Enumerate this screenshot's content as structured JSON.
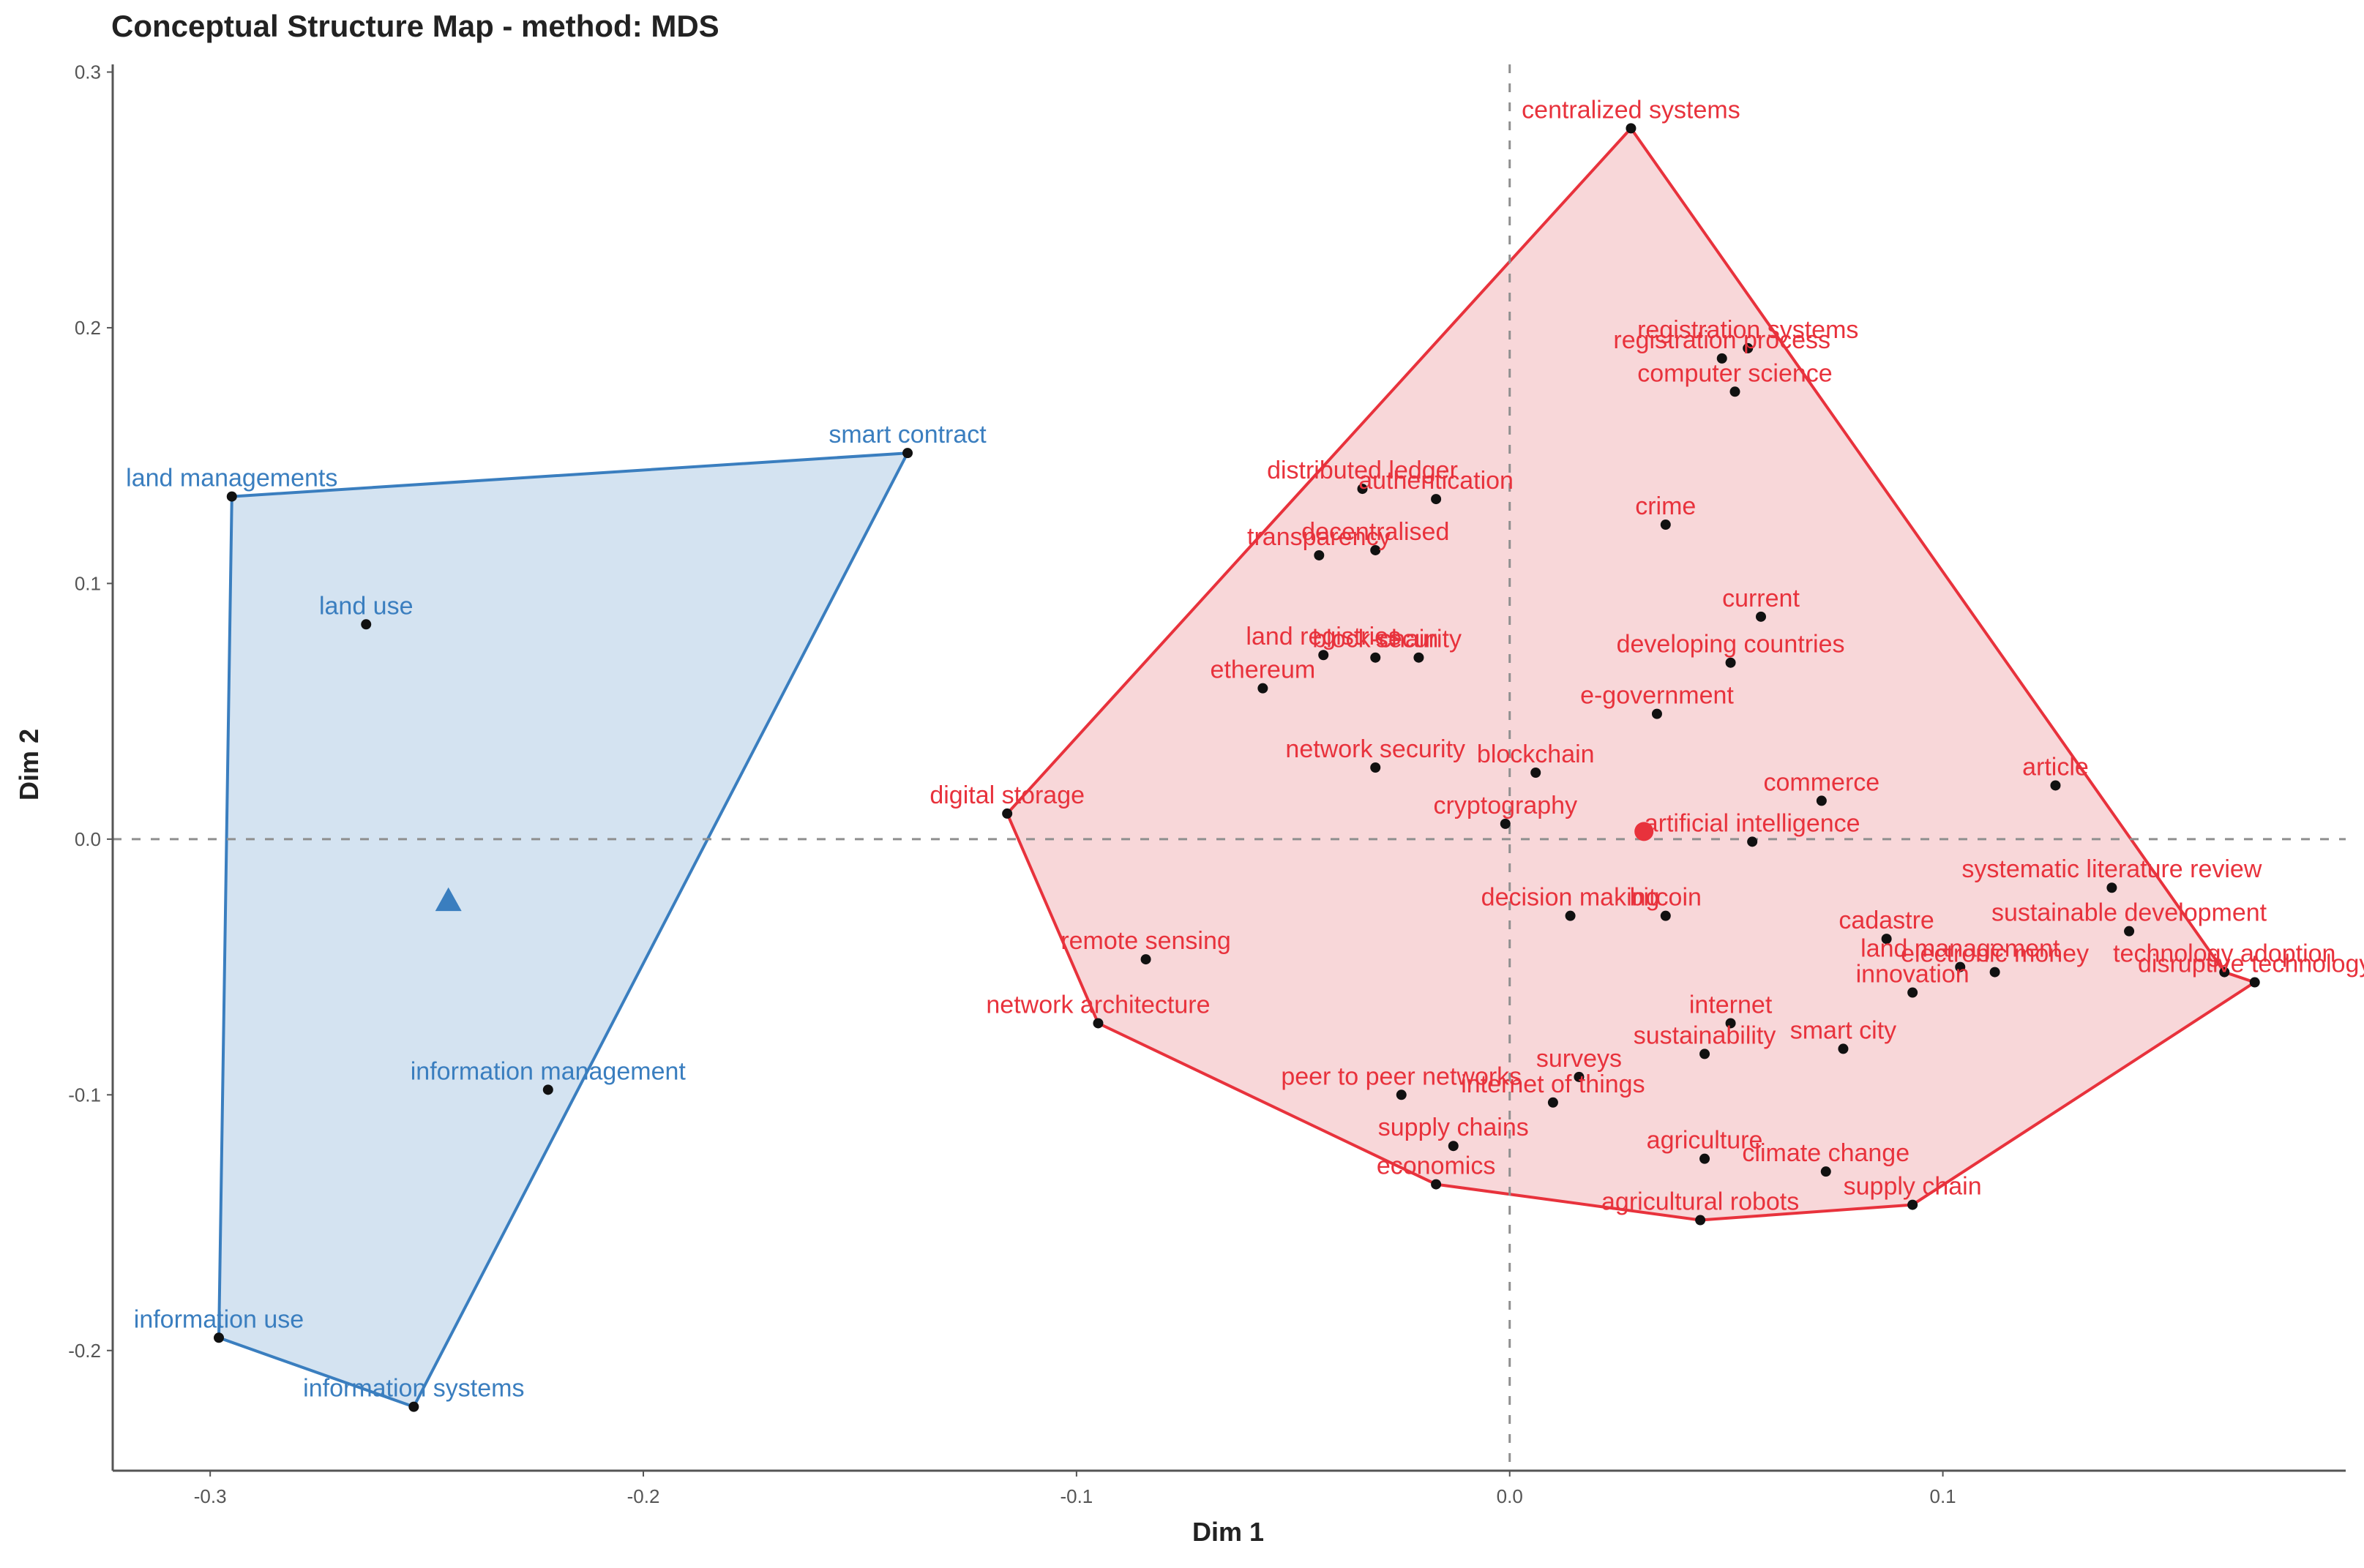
{
  "chart_data": {
    "type": "scatter",
    "title": "Conceptual Structure Map - method: MDS",
    "xlabel": "Dim 1",
    "ylabel": "Dim 2",
    "xlim": [
      -0.3225,
      0.193
    ],
    "ylim": [
      -0.247,
      0.303
    ],
    "xticks": [
      -0.3,
      -0.2,
      -0.1,
      0.0,
      0.1
    ],
    "xtick_labels": [
      "-0.3",
      "-0.2",
      "-0.1",
      "0.0",
      "0.1"
    ],
    "yticks": [
      -0.2,
      -0.1,
      0.0,
      0.1,
      0.2,
      0.3
    ],
    "ytick_labels": [
      "-0.2",
      "-0.1",
      "0.0",
      "0.1",
      "0.2",
      "0.3"
    ],
    "grid": false,
    "reference_lines": {
      "x": 0,
      "y": 0,
      "style": "dashed"
    },
    "clusters": [
      {
        "name": "cluster-1",
        "color": "#3a7ebf",
        "fill": "#c6d9ec",
        "centroid": [
          -0.245,
          -0.024
        ],
        "centroid_marker": "triangle",
        "hull": [
          "land managements",
          "smart contract",
          "information systems",
          "information use"
        ],
        "points": [
          {
            "label": "land managements",
            "x": -0.295,
            "y": 0.134
          },
          {
            "label": "smart contract",
            "x": -0.139,
            "y": 0.151
          },
          {
            "label": "land use",
            "x": -0.264,
            "y": 0.084
          },
          {
            "label": "information management",
            "x": -0.222,
            "y": -0.098
          },
          {
            "label": "information use",
            "x": -0.298,
            "y": -0.195
          },
          {
            "label": "information systems",
            "x": -0.253,
            "y": -0.222
          }
        ]
      },
      {
        "name": "cluster-2",
        "color": "#e8323c",
        "fill": "#f6c9cc",
        "centroid": [
          0.031,
          0.003
        ],
        "centroid_marker": "circle",
        "hull": [
          "centralized systems",
          "technology adoption",
          "disruptive technology",
          "supply chain",
          "agricultural robots",
          "economics",
          "network architecture",
          "digital storage"
        ],
        "points": [
          {
            "label": "centralized systems",
            "x": 0.028,
            "y": 0.278
          },
          {
            "label": "registration systems",
            "x": 0.055,
            "y": 0.192
          },
          {
            "label": "registration process",
            "x": 0.049,
            "y": 0.188
          },
          {
            "label": "computer science",
            "x": 0.052,
            "y": 0.175
          },
          {
            "label": "distributed ledger",
            "x": -0.034,
            "y": 0.137
          },
          {
            "label": "authentication",
            "x": -0.017,
            "y": 0.133
          },
          {
            "label": "crime",
            "x": 0.036,
            "y": 0.123
          },
          {
            "label": "decentralised",
            "x": -0.031,
            "y": 0.113
          },
          {
            "label": "transparency",
            "x": -0.044,
            "y": 0.111
          },
          {
            "label": "current",
            "x": 0.058,
            "y": 0.087
          },
          {
            "label": "land registries",
            "x": -0.043,
            "y": 0.072
          },
          {
            "label": "security",
            "x": -0.021,
            "y": 0.071
          },
          {
            "label": "block-chain",
            "x": -0.031,
            "y": 0.071
          },
          {
            "label": "developing countries",
            "x": 0.051,
            "y": 0.069
          },
          {
            "label": "ethereum",
            "x": -0.057,
            "y": 0.059
          },
          {
            "label": "e-government",
            "x": 0.034,
            "y": 0.049
          },
          {
            "label": "network security",
            "x": -0.031,
            "y": 0.028
          },
          {
            "label": "blockchain",
            "x": 0.006,
            "y": 0.026
          },
          {
            "label": "cryptography",
            "x": -0.001,
            "y": 0.006
          },
          {
            "label": "commerce",
            "x": 0.072,
            "y": 0.015
          },
          {
            "label": "article",
            "x": 0.126,
            "y": 0.021
          },
          {
            "label": "digital storage",
            "x": -0.116,
            "y": 0.01
          },
          {
            "label": "artificial intelligence",
            "x": 0.056,
            "y": -0.001
          },
          {
            "label": "systematic literature review",
            "x": 0.139,
            "y": -0.019
          },
          {
            "label": "sustainable development",
            "x": 0.143,
            "y": -0.036
          },
          {
            "label": "decision making",
            "x": 0.014,
            "y": -0.03
          },
          {
            "label": "bitcoin",
            "x": 0.036,
            "y": -0.03
          },
          {
            "label": "cadastre",
            "x": 0.087,
            "y": -0.039
          },
          {
            "label": "land management",
            "x": 0.104,
            "y": -0.05
          },
          {
            "label": "electronic money",
            "x": 0.112,
            "y": -0.052
          },
          {
            "label": "technology adoption",
            "x": 0.165,
            "y": -0.052
          },
          {
            "label": "remote sensing",
            "x": -0.084,
            "y": -0.047
          },
          {
            "label": "internet",
            "x": 0.051,
            "y": -0.072
          },
          {
            "label": "innovation",
            "x": 0.093,
            "y": -0.06
          },
          {
            "label": "disruptive technology",
            "x": 0.172,
            "y": -0.056
          },
          {
            "label": "network architecture",
            "x": -0.095,
            "y": -0.072
          },
          {
            "label": "surveys",
            "x": 0.016,
            "y": -0.093
          },
          {
            "label": "sustainability",
            "x": 0.045,
            "y": -0.084
          },
          {
            "label": "smart city",
            "x": 0.077,
            "y": -0.082
          },
          {
            "label": "peer to peer networks",
            "x": -0.025,
            "y": -0.1
          },
          {
            "label": "internet of things",
            "x": 0.01,
            "y": -0.103
          },
          {
            "label": "climate change",
            "x": 0.073,
            "y": -0.13
          },
          {
            "label": "supply chains",
            "x": -0.013,
            "y": -0.12
          },
          {
            "label": "agriculture",
            "x": 0.045,
            "y": -0.125
          },
          {
            "label": "economics",
            "x": -0.017,
            "y": -0.135
          },
          {
            "label": "supply chain",
            "x": 0.093,
            "y": -0.143
          },
          {
            "label": "agricultural robots",
            "x": 0.044,
            "y": -0.149
          }
        ]
      }
    ]
  }
}
